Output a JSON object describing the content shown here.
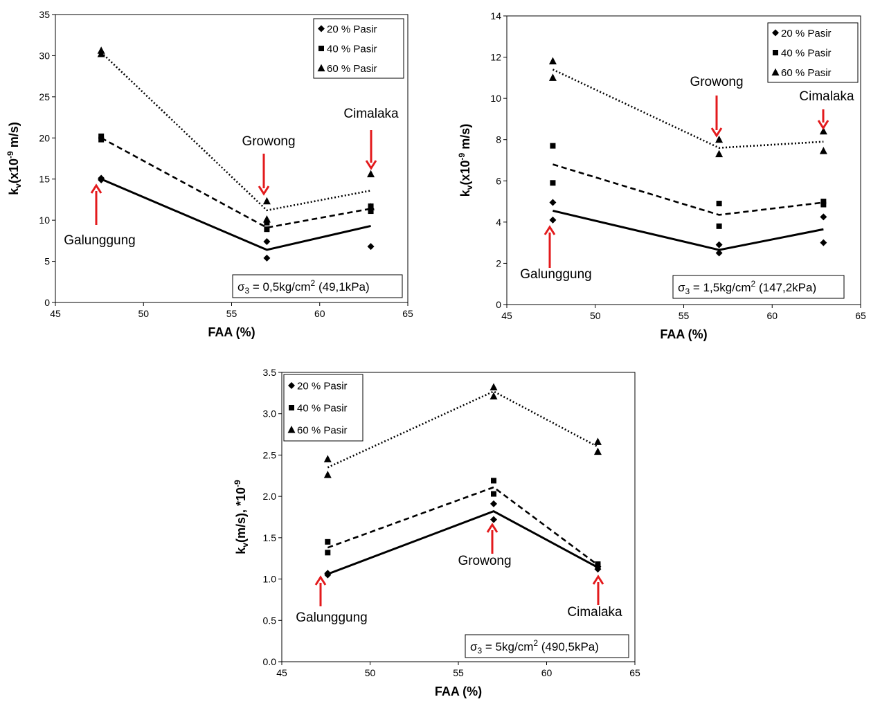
{
  "colors": {
    "axis": "#000000",
    "marker": "#000000",
    "arrow": "#e31a1c",
    "background": "#ffffff"
  },
  "line_styles": [
    "solid",
    "dashed",
    "dotted"
  ],
  "chart_data": [
    {
      "type": "scatter",
      "x": [
        47.6,
        57.0,
        62.9
      ],
      "xlabel": "FAA (%)",
      "ylabel": "kv(x10-9 m/s)",
      "xlim": [
        45,
        65
      ],
      "ylim": [
        0,
        35
      ],
      "xticks": [
        "45",
        "50",
        "55",
        "60",
        "65"
      ],
      "yticks": [
        "0",
        "5",
        "10",
        "15",
        "20",
        "25",
        "30",
        "35"
      ],
      "legend_position": "top-right",
      "condition": "σ3 = 0,5kg/cm2 (49,1kPa)",
      "series": [
        {
          "name": "20 % Pasir",
          "marker": "diamond",
          "points": [
            [
              47.6,
              14.9
            ],
            [
              47.6,
              15.1
            ],
            [
              57.0,
              7.4
            ],
            [
              57.0,
              5.4
            ],
            [
              62.9,
              11.4
            ],
            [
              62.9,
              6.8
            ]
          ],
          "trend": [
            15.0,
            6.4,
            9.3
          ]
        },
        {
          "name": "40 % Pasir",
          "marker": "square",
          "points": [
            [
              47.6,
              20.2
            ],
            [
              47.6,
              19.8
            ],
            [
              57.0,
              9.7
            ],
            [
              57.0,
              8.9
            ],
            [
              62.9,
              11.7
            ],
            [
              62.9,
              11.1
            ]
          ],
          "trend": [
            20.0,
            9.1,
            11.4
          ]
        },
        {
          "name": "60 % Pasir",
          "marker": "triangle",
          "points": [
            [
              47.6,
              30.6
            ],
            [
              47.6,
              30.2
            ],
            [
              57.0,
              12.3
            ],
            [
              57.0,
              10.1
            ],
            [
              62.9,
              15.6
            ],
            [
              62.9,
              11.6
            ]
          ],
          "trend": [
            30.4,
            11.2,
            13.6
          ]
        }
      ],
      "annotations": [
        {
          "label": "Galunggung",
          "x": 47.6,
          "direction": "up"
        },
        {
          "label": "Growong",
          "x": 57.0,
          "direction": "down"
        },
        {
          "label": "Cimalaka",
          "x": 62.9,
          "direction": "down"
        }
      ]
    },
    {
      "type": "scatter",
      "x": [
        47.6,
        57.0,
        62.9
      ],
      "xlabel": "FAA (%)",
      "ylabel": "kv(x10-9 m/s)",
      "xlim": [
        45,
        65
      ],
      "ylim": [
        0,
        14
      ],
      "xticks": [
        "45",
        "50",
        "55",
        "60",
        "65"
      ],
      "yticks": [
        "0",
        "2",
        "4",
        "6",
        "8",
        "10",
        "12",
        "14"
      ],
      "legend_position": "top-right",
      "condition": "σ3 = 1,5kg/cm2 (147,2kPa)",
      "series": [
        {
          "name": "20 % Pasir",
          "marker": "diamond",
          "points": [
            [
              47.6,
              4.95
            ],
            [
              47.6,
              4.1
            ],
            [
              57.0,
              2.9
            ],
            [
              57.0,
              2.5
            ],
            [
              62.9,
              4.25
            ],
            [
              62.9,
              3.0
            ]
          ],
          "trend": [
            4.55,
            2.65,
            3.65
          ]
        },
        {
          "name": "40 % Pasir",
          "marker": "square",
          "points": [
            [
              47.6,
              7.7
            ],
            [
              47.6,
              5.9
            ],
            [
              57.0,
              4.9
            ],
            [
              57.0,
              3.8
            ],
            [
              62.9,
              5.0
            ],
            [
              62.9,
              4.85
            ]
          ],
          "trend": [
            6.8,
            4.35,
            4.95
          ]
        },
        {
          "name": "60 % Pasir",
          "marker": "triangle",
          "points": [
            [
              47.6,
              11.8
            ],
            [
              47.6,
              11.0
            ],
            [
              57.0,
              8.0
            ],
            [
              57.0,
              7.3
            ],
            [
              62.9,
              8.4
            ],
            [
              62.9,
              7.45
            ]
          ],
          "trend": [
            11.4,
            7.6,
            7.9
          ]
        }
      ],
      "annotations": [
        {
          "label": "Galunggung",
          "x": 47.6,
          "direction": "up"
        },
        {
          "label": "Growong",
          "x": 57.0,
          "direction": "down"
        },
        {
          "label": "Cimalaka",
          "x": 62.9,
          "direction": "down"
        }
      ]
    },
    {
      "type": "scatter",
      "x": [
        47.6,
        57.0,
        62.9
      ],
      "xlabel": "FAA (%)",
      "ylabel": "kv(m/s), *10-9",
      "xlim": [
        45,
        65
      ],
      "ylim": [
        0,
        3.5
      ],
      "xticks": [
        "45",
        "50",
        "55",
        "60",
        "65"
      ],
      "yticks": [
        "0.0",
        "0.5",
        "1.0",
        "1.5",
        "2.0",
        "2.5",
        "3.0",
        "3.5"
      ],
      "legend_position": "top-left",
      "condition": "σ3 = 5kg/cm2 (490,5kPa)",
      "series": [
        {
          "name": "20 % Pasir",
          "marker": "diamond",
          "points": [
            [
              47.6,
              1.07
            ],
            [
              47.6,
              1.05
            ],
            [
              57.0,
              1.91
            ],
            [
              57.0,
              1.72
            ],
            [
              62.9,
              1.15
            ],
            [
              62.9,
              1.12
            ]
          ],
          "trend": [
            1.06,
            1.82,
            1.14
          ]
        },
        {
          "name": "40 % Pasir",
          "marker": "square",
          "points": [
            [
              47.6,
              1.45
            ],
            [
              47.6,
              1.32
            ],
            [
              57.0,
              2.19
            ],
            [
              57.0,
              2.03
            ],
            [
              62.9,
              1.18
            ],
            [
              62.9,
              1.16
            ]
          ],
          "trend": [
            1.38,
            2.11,
            1.17
          ]
        },
        {
          "name": "60 % Pasir",
          "marker": "triangle",
          "points": [
            [
              47.6,
              2.45
            ],
            [
              47.6,
              2.26
            ],
            [
              57.0,
              3.32
            ],
            [
              57.0,
              3.21
            ],
            [
              62.9,
              2.66
            ],
            [
              62.9,
              2.54
            ]
          ],
          "trend": [
            2.35,
            3.27,
            2.6
          ]
        }
      ],
      "annotations": [
        {
          "label": "Galunggung",
          "x": 47.6,
          "direction": "up"
        },
        {
          "label": "Growong",
          "x": 57.0,
          "direction": "up"
        },
        {
          "label": "Cimalaka",
          "x": 62.9,
          "direction": "up"
        }
      ]
    }
  ]
}
